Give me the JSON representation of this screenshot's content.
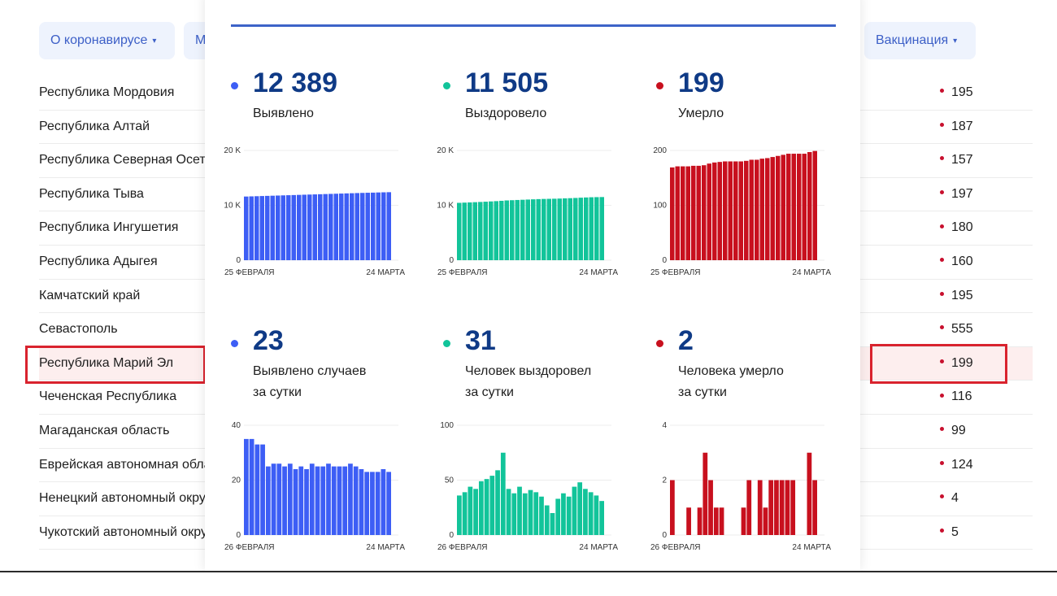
{
  "nav": {
    "buttons": [
      {
        "label": "О коронавирусе",
        "caret": "▾"
      },
      {
        "label": "М",
        "caret": ""
      },
      {
        "label": "Вакцинация",
        "caret": "▾"
      }
    ]
  },
  "colors": {
    "detected": "#3d5ef5",
    "recovered": "#12c49a",
    "deaths": "#c8101e",
    "number": "#0f3a86",
    "highlight": "#d9232e"
  },
  "regions": [
    {
      "name": "Республика Мордовия",
      "value": "195"
    },
    {
      "name": "Республика Алтай",
      "value": "187"
    },
    {
      "name": "Республика Северная Осетия",
      "value": "157"
    },
    {
      "name": "Республика Тыва",
      "value": "197"
    },
    {
      "name": "Республика Ингушетия",
      "value": "180"
    },
    {
      "name": "Республика Адыгея",
      "value": "160"
    },
    {
      "name": "Камчатский край",
      "value": "195"
    },
    {
      "name": "Севастополь",
      "value": "555"
    },
    {
      "name": "Республика Марий Эл",
      "value": "199",
      "highlighted": true
    },
    {
      "name": "Чеченская Республика",
      "value": "116"
    },
    {
      "name": "Магаданская область",
      "value": "99"
    },
    {
      "name": "Еврейская автономная область",
      "value": "124"
    },
    {
      "name": "Ненецкий автономный округ",
      "value": "4"
    },
    {
      "name": "Чукотский автономный округ",
      "value": "5"
    }
  ],
  "popup": {
    "stats": [
      {
        "id": "detected",
        "value": "12 389",
        "label_lines": [
          "Выявлено"
        ]
      },
      {
        "id": "recovered",
        "value": "11 505",
        "label_lines": [
          "Выздоровело"
        ]
      },
      {
        "id": "deaths",
        "value": "199",
        "label_lines": [
          "Умерло"
        ]
      },
      {
        "id": "detected-daily",
        "value": "23",
        "label_lines": [
          "Выявлено случаев",
          "за сутки"
        ]
      },
      {
        "id": "recovered-daily",
        "value": "31",
        "label_lines": [
          "Человек выздоровел",
          "за сутки"
        ]
      },
      {
        "id": "deaths-daily",
        "value": "2",
        "label_lines": [
          "Человека умерло",
          "за сутки"
        ]
      }
    ]
  },
  "chart_data": [
    {
      "type": "bar",
      "title": "Выявлено",
      "series_key": "detected",
      "xlabel_start": "25 ФЕВРАЛЯ",
      "xlabel_end": "24 МАРТА",
      "yticks": [
        0,
        10000,
        20000
      ],
      "ytick_labels": [
        "0",
        "10 K",
        "20 K"
      ],
      "ylim": [
        0,
        20000
      ],
      "values": [
        11600,
        11630,
        11660,
        11690,
        11720,
        11750,
        11780,
        11810,
        11840,
        11870,
        11900,
        11930,
        11960,
        11990,
        12020,
        12050,
        12080,
        12110,
        12140,
        12170,
        12200,
        12230,
        12260,
        12290,
        12310,
        12340,
        12366,
        12389
      ]
    },
    {
      "type": "bar",
      "title": "Выздоровело",
      "series_key": "recovered",
      "xlabel_start": "25 ФЕВРАЛЯ",
      "xlabel_end": "24 МАРТА",
      "yticks": [
        0,
        10000,
        20000
      ],
      "ytick_labels": [
        "0",
        "10 K",
        "20 K"
      ],
      "ylim": [
        0,
        20000
      ],
      "values": [
        10450,
        10490,
        10530,
        10570,
        10610,
        10660,
        10710,
        10760,
        10820,
        10890,
        10930,
        10970,
        11010,
        11050,
        11090,
        11130,
        11160,
        11180,
        11200,
        11230,
        11270,
        11300,
        11340,
        11390,
        11430,
        11470,
        11490,
        11505
      ]
    },
    {
      "type": "bar",
      "title": "Умерло",
      "series_key": "deaths",
      "xlabel_start": "25 ФЕВРАЛЯ",
      "xlabel_end": "24 МАРТА",
      "yticks": [
        0,
        100,
        200
      ],
      "ytick_labels": [
        "0",
        "100",
        "200"
      ],
      "ylim": [
        0,
        200
      ],
      "values": [
        169,
        171,
        171,
        171,
        172,
        172,
        173,
        176,
        178,
        179,
        180,
        180,
        180,
        180,
        181,
        183,
        183,
        185,
        186,
        188,
        190,
        192,
        194,
        194,
        194,
        194,
        197,
        199
      ]
    },
    {
      "type": "bar",
      "title": "Выявлено случаев за сутки",
      "series_key": "detected",
      "xlabel_start": "26 ФЕВРАЛЯ",
      "xlabel_end": "24 МАРТА",
      "yticks": [
        0,
        20,
        40
      ],
      "ytick_labels": [
        "0",
        "20",
        "40"
      ],
      "ylim": [
        0,
        40
      ],
      "values": [
        35,
        35,
        33,
        33,
        25,
        26,
        26,
        25,
        26,
        24,
        25,
        24,
        26,
        25,
        25,
        26,
        25,
        25,
        25,
        26,
        25,
        24,
        23,
        23,
        23,
        24,
        23
      ]
    },
    {
      "type": "bar",
      "title": "Человек выздоровел за сутки",
      "series_key": "recovered",
      "xlabel_start": "26 ФЕВРАЛЯ",
      "xlabel_end": "24 МАРТА",
      "yticks": [
        0,
        50,
        100
      ],
      "ytick_labels": [
        "0",
        "50",
        "100"
      ],
      "ylim": [
        0,
        100
      ],
      "values": [
        36,
        39,
        44,
        42,
        49,
        51,
        54,
        59,
        75,
        42,
        38,
        44,
        38,
        41,
        39,
        35,
        27,
        20,
        33,
        38,
        35,
        44,
        48,
        42,
        39,
        36,
        31
      ]
    },
    {
      "type": "bar",
      "title": "Человека умерло за сутки",
      "series_key": "deaths",
      "xlabel_start": "26 ФЕВРАЛЯ",
      "xlabel_end": "24 МАРТА",
      "yticks": [
        0,
        2,
        4
      ],
      "ytick_labels": [
        "0",
        "2",
        "4"
      ],
      "ylim": [
        0,
        4
      ],
      "values": [
        2,
        0,
        0,
        1,
        0,
        1,
        3,
        2,
        1,
        1,
        0,
        0,
        0,
        1,
        2,
        0,
        2,
        1,
        2,
        2,
        2,
        2,
        2,
        0,
        0,
        3,
        2
      ]
    }
  ]
}
